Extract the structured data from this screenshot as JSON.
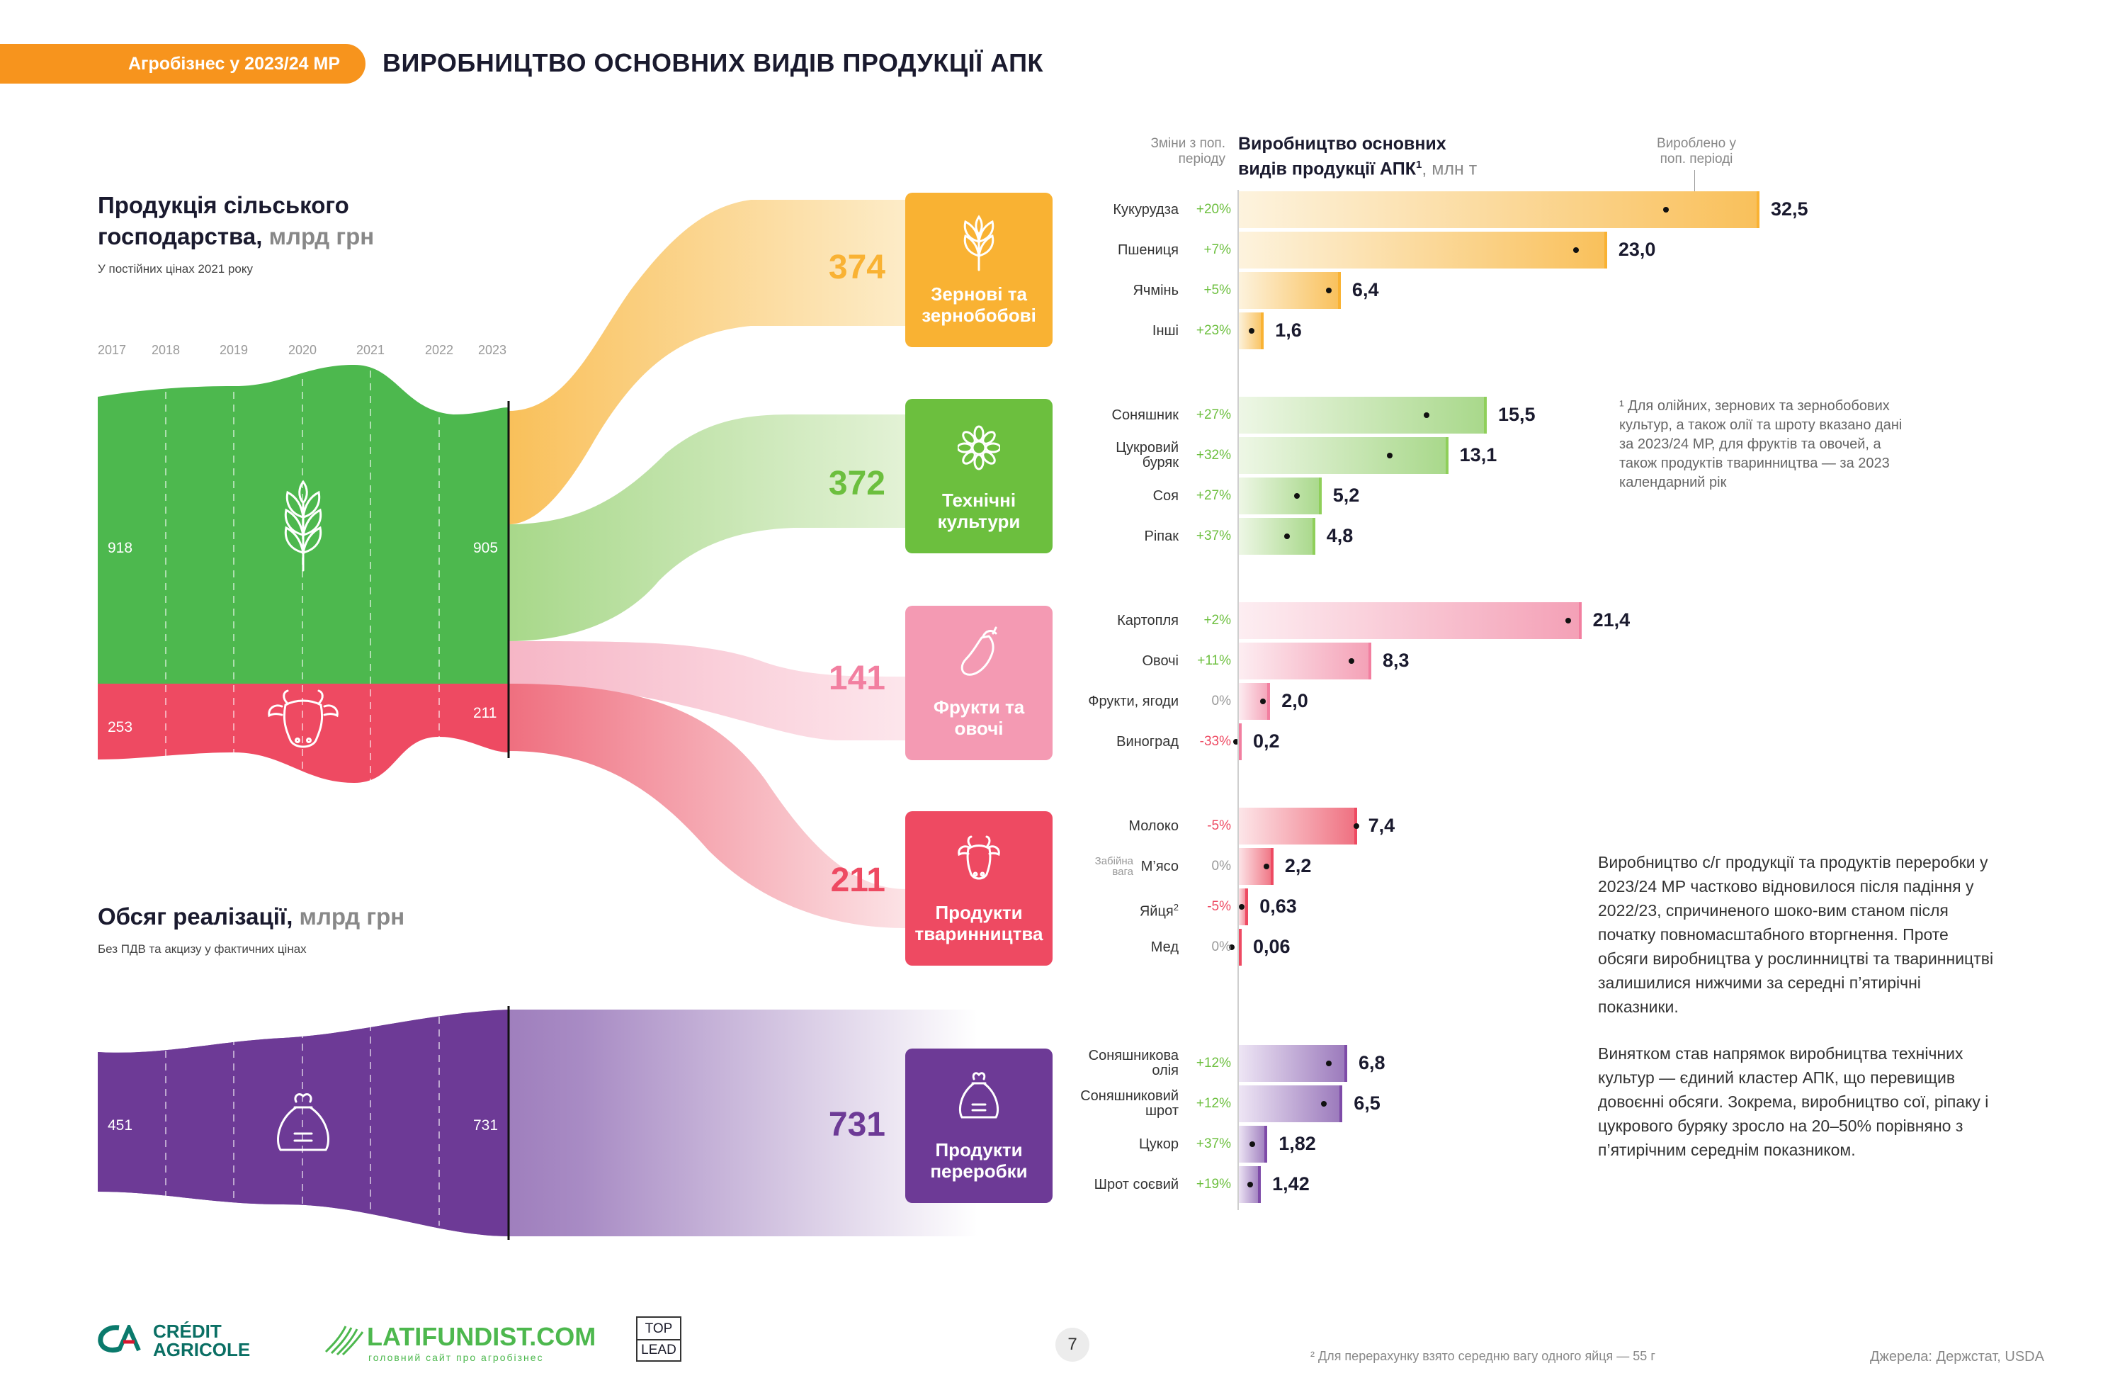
{
  "header": {
    "tag": "Агробізнес у 2023/24 МР",
    "title": "ВИРОБНИЦТВО ОСНОВНИХ ВИДІВ ПРОДУКЦІЇ АПК"
  },
  "production": {
    "title_line1": "Продукція сільського",
    "title_line2": "господарства,",
    "unit": "млрд грн",
    "note": "У постійних цінах 2021 року",
    "years": [
      "2017",
      "2018",
      "2019",
      "2020",
      "2021",
      "2022",
      "2023"
    ],
    "crop_start": "918",
    "crop_end": "905",
    "livestock_start": "253",
    "livestock_end": "211"
  },
  "sales": {
    "title": "Обсяг реалізації,",
    "unit": "млрд грн",
    "note": "Без ПДВ та акцизу у фактичних цінах",
    "start": "451",
    "end": "731"
  },
  "flows": [
    {
      "value": "374",
      "label_line1": "Зернові та",
      "label_line2": "зернобобові",
      "color": "#f9b233",
      "icon": "wheat-icon"
    },
    {
      "value": "372",
      "label_line1": "Технічні",
      "label_line2": "культури",
      "color": "#6cbf3e",
      "icon": "sunflower-icon"
    },
    {
      "value": "141",
      "label_line1": "Фрукти та",
      "label_line2": "овочі",
      "color": "#f49ab3",
      "icon": "eggplant-icon"
    },
    {
      "value": "211",
      "label_line1": "Продукти",
      "label_line2": "тваринництва",
      "color": "#ee4a62",
      "icon": "cow-icon"
    },
    {
      "value": "731",
      "label_line1": "Продукти",
      "label_line2": "переробки",
      "color": "#6d3a96",
      "icon": "sack-icon"
    }
  ],
  "bars_header": {
    "changes_label": "Зміни з поп. періоду",
    "main_line1": "Виробництво основних",
    "main_line2": "видів продукції АПК",
    "sup": "1",
    "unit": ", млн т",
    "prev_label": "Вироблено у поп. періоді"
  },
  "chart_data": {
    "type": "bar",
    "orientation": "horizontal",
    "title": "Виробництво основних видів продукції АПК, млн т",
    "groups": [
      {
        "name": "Зернові та зернобобові",
        "color": "#f9b233",
        "items": [
          {
            "label": "Кукурудза",
            "value": 32.5,
            "display": "32,5",
            "change": "+20%",
            "prev": 27.1
          },
          {
            "label": "Пшениця",
            "value": 23.0,
            "display": "23,0",
            "change": "+7%",
            "prev": 21.5
          },
          {
            "label": "Ячмінь",
            "value": 6.4,
            "display": "6,4",
            "change": "+5%",
            "prev": 6.1
          },
          {
            "label": "Інші",
            "value": 1.6,
            "display": "1,6",
            "change": "+23%",
            "prev": 1.3
          }
        ]
      },
      {
        "name": "Технічні культури",
        "color": "#8fcf5a",
        "items": [
          {
            "label": "Соняшник",
            "value": 15.5,
            "display": "15,5",
            "change": "+27%",
            "prev": 12.2
          },
          {
            "label": "Цукровий буряк",
            "value": 13.1,
            "display": "13,1",
            "change": "+32%",
            "prev": 9.9
          },
          {
            "label": "Соя",
            "value": 5.2,
            "display": "5,2",
            "change": "+27%",
            "prev": 4.1
          },
          {
            "label": "Ріпак",
            "value": 4.8,
            "display": "4,8",
            "change": "+37%",
            "prev": 3.5
          }
        ]
      },
      {
        "name": "Фрукти та овочі",
        "color": "#f28ca6",
        "items": [
          {
            "label": "Картопля",
            "value": 21.4,
            "display": "21,4",
            "change": "+2%",
            "prev": 21.0
          },
          {
            "label": "Овочі",
            "value": 8.3,
            "display": "8,3",
            "change": "+11%",
            "prev": 7.5
          },
          {
            "label": "Фрукти, ягоди",
            "value": 2.0,
            "display": "2,0",
            "change": "0%",
            "prev": 2.0
          },
          {
            "label": "Виноград",
            "value": 0.2,
            "display": "0,2",
            "change": "-33%",
            "prev": 0.3
          }
        ]
      },
      {
        "name": "Продукти тваринництва",
        "color": "#ee4a62",
        "items": [
          {
            "label": "Молоко",
            "value": 7.4,
            "display": "7,4",
            "change": "-5%",
            "prev": 7.8
          },
          {
            "label": "М’ясо",
            "value": 2.2,
            "display": "2,2",
            "change": "0%",
            "prev": 2.2,
            "note": "Забійна вага"
          },
          {
            "label": "Яйця",
            "sup": "2",
            "value": 0.63,
            "display": "0,63",
            "change": "-5%",
            "prev": 0.66
          },
          {
            "label": "Мед",
            "value": 0.06,
            "display": "0,06",
            "change": "0%",
            "prev": 0.06
          }
        ]
      },
      {
        "name": "Продукти переробки",
        "color": "#7e4ba8",
        "items": [
          {
            "label": "Соняшникова олія",
            "value": 6.8,
            "display": "6,8",
            "change": "+12%",
            "prev": 6.1
          },
          {
            "label": "Соняшниковий шрот",
            "value": 6.5,
            "display": "6,5",
            "change": "+12%",
            "prev": 5.8
          },
          {
            "label": "Цукор",
            "value": 1.82,
            "display": "1,82",
            "change": "+37%",
            "prev": 1.33
          },
          {
            "label": "Шрот соєвий",
            "value": 1.42,
            "display": "1,42",
            "change": "+19%",
            "prev": 1.19
          }
        ]
      }
    ],
    "positive_color": "#6cbf3e",
    "negative_color": "#ee4a62",
    "neutral_color": "#999999"
  },
  "footnote1": "¹ Для олійних, зернових та зернобобових культур, а також олії та шроту вказано дані за 2023/24 МР, для фруктів та овочей, а також продуктів тваринництва — за 2023 календарний рік",
  "paragraph1": "Виробництво с/г продукції та продуктів переробки у 2023/24 МР частково відновилося після падіння у 2022/23, спричиненого шоко-вим станом після початку повномасштабного вторгнення. Проте обсяги виробництва у рослинництві та тваринництві залишилися нижчими за середні п’ятирічні показники.",
  "paragraph2": "Винятком став напрямок виробництва технічних культур — єдиний кластер АПК, що перевищив довоєнні обсяги. Зокрема, виробництво сої, ріпаку і цукрового буряку зросло на 20–50% порівняно з п’ятирічним середнім показником.",
  "footer": {
    "logo1_line1": "CRÉDIT",
    "logo1_line2": "AGRICOLE",
    "logo2": "LATIFUNDIST.COM",
    "logo2_tagline": "головний сайт про агробізнес",
    "logo3_line1": "TOP",
    "logo3_line2": "LEAD",
    "page": "7",
    "footnote2": "² Для перерахунку взято середню вагу одного яйця — 55 г",
    "sources": "Джерела: Держстат, USDA"
  }
}
